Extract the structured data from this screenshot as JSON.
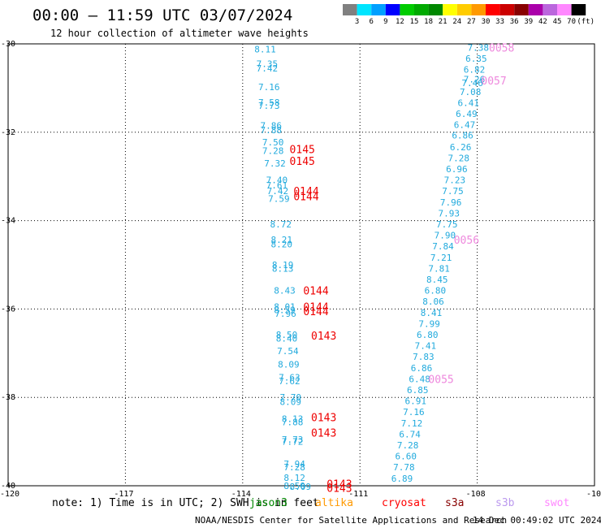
{
  "header": {
    "title": "00:00 – 11:59 UTC 03/07/2024",
    "subtitle": "12 hour collection of altimeter wave heights"
  },
  "legend": {
    "colors": [
      "#808080",
      "#00e5ff",
      "#00a0ff",
      "#0000ff",
      "#00cc00",
      "#00aa00",
      "#008800",
      "#ffff00",
      "#ffcc00",
      "#ff9900",
      "#ff0000",
      "#cc0000",
      "#880000",
      "#aa00aa",
      "#bb66dd",
      "#ff88ff",
      "#000000"
    ],
    "labels": [
      "3",
      "6",
      "9",
      "12",
      "15",
      "18",
      "21",
      "24",
      "27",
      "30",
      "33",
      "36",
      "39",
      "42",
      "45",
      "70",
      "(ft)"
    ]
  },
  "map": {
    "y_ticks": [
      "-30",
      "-32",
      "-34",
      "-36",
      "-38",
      "-40"
    ],
    "x_ticks": [
      "-120",
      "-117",
      "-114",
      "-111",
      "-108",
      "-10"
    ],
    "lat_range": [
      -40,
      -30
    ],
    "lon_range": [
      -120,
      -105
    ]
  },
  "observations": [
    {
      "lon": -113.7,
      "lat": -30.12,
      "v": "8.11",
      "c": "#22aadd"
    },
    {
      "lon": -113.65,
      "lat": -30.45,
      "v": "7.35",
      "c": "#22aadd"
    },
    {
      "lon": -113.65,
      "lat": -30.55,
      "v": "7.42",
      "c": "#22aadd"
    },
    {
      "lon": -113.6,
      "lat": -30.97,
      "v": "7.16",
      "c": "#22aadd"
    },
    {
      "lon": -113.6,
      "lat": -31.32,
      "v": "7.58",
      "c": "#22aadd"
    },
    {
      "lon": -113.6,
      "lat": -31.4,
      "v": "7.73",
      "c": "#22aadd"
    },
    {
      "lon": -113.55,
      "lat": -31.85,
      "v": "7.86",
      "c": "#22aadd"
    },
    {
      "lon": -113.55,
      "lat": -31.95,
      "v": "7.88",
      "c": "#22aadd"
    },
    {
      "lon": -113.5,
      "lat": -32.22,
      "v": "7.50",
      "c": "#22aadd"
    },
    {
      "lon": -113.5,
      "lat": -32.42,
      "v": "7.28",
      "c": "#22aadd"
    },
    {
      "lon": -113.45,
      "lat": -32.7,
      "v": "7.32",
      "c": "#22aadd"
    },
    {
      "lon": -113.4,
      "lat": -33.08,
      "v": "7.40",
      "c": "#22aadd"
    },
    {
      "lon": -113.4,
      "lat": -33.2,
      "v": "7.61",
      "c": "#22aadd"
    },
    {
      "lon": -113.38,
      "lat": -33.33,
      "v": "7.42",
      "c": "#22aadd"
    },
    {
      "lon": -113.35,
      "lat": -33.5,
      "v": "7.59",
      "c": "#22aadd"
    },
    {
      "lon": -113.3,
      "lat": -34.08,
      "v": "8.72",
      "c": "#22aadd"
    },
    {
      "lon": -113.28,
      "lat": -34.43,
      "v": "8.21",
      "c": "#22aadd"
    },
    {
      "lon": -113.28,
      "lat": -34.53,
      "v": "8.20",
      "c": "#22aadd"
    },
    {
      "lon": -113.25,
      "lat": -35.0,
      "v": "8.19",
      "c": "#22aadd"
    },
    {
      "lon": -113.25,
      "lat": -35.08,
      "v": "8.13",
      "c": "#22aadd"
    },
    {
      "lon": -113.2,
      "lat": -35.58,
      "v": "8.43",
      "c": "#22aadd"
    },
    {
      "lon": -113.2,
      "lat": -35.95,
      "v": "8.01",
      "c": "#22aadd"
    },
    {
      "lon": -113.2,
      "lat": -36.02,
      "v": "8.59",
      "c": "#22aadd"
    },
    {
      "lon": -113.18,
      "lat": -36.1,
      "v": "7.96",
      "c": "#22aadd"
    },
    {
      "lon": -113.15,
      "lat": -36.58,
      "v": "8.50",
      "c": "#22aadd"
    },
    {
      "lon": -113.15,
      "lat": -36.66,
      "v": "8.40",
      "c": "#22aadd"
    },
    {
      "lon": -113.12,
      "lat": -36.95,
      "v": "7.54",
      "c": "#22aadd"
    },
    {
      "lon": -113.1,
      "lat": -37.25,
      "v": "8.09",
      "c": "#22aadd"
    },
    {
      "lon": -113.08,
      "lat": -37.55,
      "v": "7.63",
      "c": "#22aadd"
    },
    {
      "lon": -113.08,
      "lat": -37.63,
      "v": "7.62",
      "c": "#22aadd"
    },
    {
      "lon": -113.05,
      "lat": -38.0,
      "v": "7.70",
      "c": "#22aadd"
    },
    {
      "lon": -113.05,
      "lat": -38.1,
      "v": "8.09",
      "c": "#22aadd"
    },
    {
      "lon": -113.0,
      "lat": -38.48,
      "v": "8.13",
      "c": "#22aadd"
    },
    {
      "lon": -113.0,
      "lat": -38.56,
      "v": "7.88",
      "c": "#22aadd"
    },
    {
      "lon": -113.0,
      "lat": -38.95,
      "v": "7.73",
      "c": "#22aadd"
    },
    {
      "lon": -113.0,
      "lat": -39.0,
      "v": "7.72",
      "c": "#22aadd"
    },
    {
      "lon": -112.95,
      "lat": -39.5,
      "v": "7.94",
      "c": "#22aadd"
    },
    {
      "lon": -112.95,
      "lat": -39.58,
      "v": "7.28",
      "c": "#22aadd"
    },
    {
      "lon": -112.95,
      "lat": -39.82,
      "v": "8.12",
      "c": "#22aadd"
    },
    {
      "lon": -112.95,
      "lat": -40.0,
      "v": "8.50",
      "c": "#22aadd"
    },
    {
      "lon": -112.8,
      "lat": -40.02,
      "v": "8.09",
      "c": "#22aadd"
    },
    {
      "lon": -108.25,
      "lat": -30.08,
      "v": "7.38",
      "c": "#22aadd"
    },
    {
      "lon": -108.3,
      "lat": -30.33,
      "v": "6.35",
      "c": "#22aadd"
    },
    {
      "lon": -108.35,
      "lat": -30.58,
      "v": "6.82",
      "c": "#22aadd"
    },
    {
      "lon": -108.35,
      "lat": -30.8,
      "v": "7.26",
      "c": "#22aadd"
    },
    {
      "lon": -108.4,
      "lat": -30.88,
      "v": "7.46",
      "c": "#22aadd"
    },
    {
      "lon": -108.45,
      "lat": -31.08,
      "v": "7.08",
      "c": "#22aadd"
    },
    {
      "lon": -108.5,
      "lat": -31.33,
      "v": "6.41",
      "c": "#22aadd"
    },
    {
      "lon": -108.55,
      "lat": -31.58,
      "v": "6.49",
      "c": "#22aadd"
    },
    {
      "lon": -108.6,
      "lat": -31.83,
      "v": "6.47",
      "c": "#22aadd"
    },
    {
      "lon": -108.65,
      "lat": -32.07,
      "v": "6.86",
      "c": "#22aadd"
    },
    {
      "lon": -108.7,
      "lat": -32.33,
      "v": "6.26",
      "c": "#22aadd"
    },
    {
      "lon": -108.75,
      "lat": -32.58,
      "v": "7.28",
      "c": "#22aadd"
    },
    {
      "lon": -108.8,
      "lat": -32.83,
      "v": "6.96",
      "c": "#22aadd"
    },
    {
      "lon": -108.85,
      "lat": -33.08,
      "v": "7.23",
      "c": "#22aadd"
    },
    {
      "lon": -108.9,
      "lat": -33.33,
      "v": "7.75",
      "c": "#22aadd"
    },
    {
      "lon": -108.95,
      "lat": -33.58,
      "v": "7.96",
      "c": "#22aadd"
    },
    {
      "lon": -109.0,
      "lat": -33.83,
      "v": "7.93",
      "c": "#22aadd"
    },
    {
      "lon": -109.05,
      "lat": -34.08,
      "v": "7.75",
      "c": "#22aadd"
    },
    {
      "lon": -109.1,
      "lat": -34.33,
      "v": "7.90",
      "c": "#22aadd"
    },
    {
      "lon": -109.15,
      "lat": -34.58,
      "v": "7.84",
      "c": "#22aadd"
    },
    {
      "lon": -109.2,
      "lat": -34.83,
      "v": "7.21",
      "c": "#22aadd"
    },
    {
      "lon": -109.25,
      "lat": -35.08,
      "v": "7.81",
      "c": "#22aadd"
    },
    {
      "lon": -109.3,
      "lat": -35.33,
      "v": "8.45",
      "c": "#22aadd"
    },
    {
      "lon": -109.35,
      "lat": -35.58,
      "v": "6.80",
      "c": "#22aadd"
    },
    {
      "lon": -109.4,
      "lat": -35.83,
      "v": "8.06",
      "c": "#22aadd"
    },
    {
      "lon": -109.45,
      "lat": -36.08,
      "v": "8.41",
      "c": "#22aadd"
    },
    {
      "lon": -109.5,
      "lat": -36.33,
      "v": "7.99",
      "c": "#22aadd"
    },
    {
      "lon": -109.55,
      "lat": -36.58,
      "v": "6.80",
      "c": "#22aadd"
    },
    {
      "lon": -109.6,
      "lat": -36.83,
      "v": "7.41",
      "c": "#22aadd"
    },
    {
      "lon": -109.65,
      "lat": -37.08,
      "v": "7.83",
      "c": "#22aadd"
    },
    {
      "lon": -109.7,
      "lat": -37.33,
      "v": "6.86",
      "c": "#22aadd"
    },
    {
      "lon": -109.75,
      "lat": -37.58,
      "v": "6.48",
      "c": "#22aadd"
    },
    {
      "lon": -109.8,
      "lat": -37.83,
      "v": "6.85",
      "c": "#22aadd"
    },
    {
      "lon": -109.85,
      "lat": -38.08,
      "v": "6.91",
      "c": "#22aadd"
    },
    {
      "lon": -109.9,
      "lat": -38.33,
      "v": "7.16",
      "c": "#22aadd"
    },
    {
      "lon": -109.95,
      "lat": -38.58,
      "v": "7.12",
      "c": "#22aadd"
    },
    {
      "lon": -110.0,
      "lat": -38.83,
      "v": "6.74",
      "c": "#22aadd"
    },
    {
      "lon": -110.05,
      "lat": -39.08,
      "v": "7.28",
      "c": "#22aadd"
    },
    {
      "lon": -110.1,
      "lat": -39.33,
      "v": "6.60",
      "c": "#22aadd"
    },
    {
      "lon": -110.15,
      "lat": -39.58,
      "v": "7.78",
      "c": "#22aadd"
    },
    {
      "lon": -110.2,
      "lat": -39.83,
      "v": "6.89",
      "c": "#22aadd"
    }
  ],
  "pass_labels": [
    {
      "lon": -112.8,
      "lat": -32.38,
      "t": "0145",
      "c": "#ee0000"
    },
    {
      "lon": -112.8,
      "lat": -32.65,
      "t": "0145",
      "c": "#ee0000"
    },
    {
      "lon": -112.7,
      "lat": -33.33,
      "t": "0144",
      "c": "#ee0000"
    },
    {
      "lon": -112.7,
      "lat": -33.45,
      "t": "0144",
      "c": "#ee0000"
    },
    {
      "lon": -112.45,
      "lat": -35.58,
      "t": "0144",
      "c": "#ee0000"
    },
    {
      "lon": -112.45,
      "lat": -35.95,
      "t": "0144",
      "c": "#ee0000"
    },
    {
      "lon": -112.45,
      "lat": -36.05,
      "t": "0144",
      "c": "#ee0000"
    },
    {
      "lon": -112.25,
      "lat": -36.6,
      "t": "0143",
      "c": "#ee0000"
    },
    {
      "lon": -112.25,
      "lat": -38.45,
      "t": "0143",
      "c": "#ee0000"
    },
    {
      "lon": -112.25,
      "lat": -38.8,
      "t": "0143",
      "c": "#ee0000"
    },
    {
      "lon": -111.85,
      "lat": -39.95,
      "t": "0143",
      "c": "#ee0000"
    },
    {
      "lon": -111.85,
      "lat": -40.05,
      "t": "0143",
      "c": "#ee0000"
    },
    {
      "lon": -107.7,
      "lat": -30.08,
      "t": "0058",
      "c": "#ee88dd"
    },
    {
      "lon": -107.9,
      "lat": -30.83,
      "t": "0057",
      "c": "#ee88dd"
    },
    {
      "lon": -108.6,
      "lat": -34.43,
      "t": "0056",
      "c": "#ee88dd"
    },
    {
      "lon": -109.25,
      "lat": -37.58,
      "t": "0055",
      "c": "#ee88dd"
    }
  ],
  "bottom": {
    "note": "note: 1) Time is in UTC; 2) SWH is in feet",
    "satellites": [
      {
        "name": "jason3",
        "color": "#008800"
      },
      {
        "name": "altika",
        "color": "#ff9900"
      },
      {
        "name": "cryosat",
        "color": "#ff0000"
      },
      {
        "name": "s3a",
        "color": "#880000"
      },
      {
        "name": "s3b",
        "color": "#bb99ee"
      },
      {
        "name": "swot",
        "color": "#ff88ff"
      }
    ],
    "footer_left": "NOAA/NESDIS Center for Satellite Applications and Research",
    "footer_right": "14 Dec 00:49:02 UTC 2024"
  }
}
